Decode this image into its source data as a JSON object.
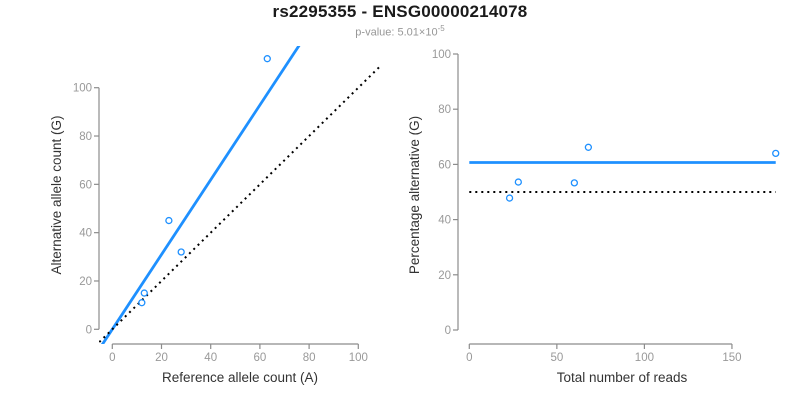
{
  "header": {
    "title": "rs2295355 - ENSG00000214078",
    "subtitle_prefix": "p-value: 5.01×10",
    "subtitle_exponent": "-5"
  },
  "colors": {
    "accent_blue": "#1E90FF",
    "dotted_black": "#000000",
    "axis_gray": "#8c8c8c",
    "tick_label_gray": "#999999",
    "axis_title_dark": "#333333"
  },
  "chart_data": [
    {
      "type": "scatter",
      "panel": "left",
      "xlabel": "Reference allele count (A)",
      "ylabel": "Alternative allele count (G)",
      "xlim": [
        0,
        100
      ],
      "ylim": [
        0,
        100
      ],
      "xticks": [
        0,
        20,
        40,
        60,
        80,
        100
      ],
      "yticks": [
        0,
        20,
        40,
        60,
        80,
        100
      ],
      "grid": false,
      "points": [
        [
          12,
          11
        ],
        [
          13,
          15
        ],
        [
          28,
          32
        ],
        [
          23,
          45
        ],
        [
          63,
          112
        ]
      ],
      "lines": [
        {
          "name": "fit-line",
          "slope": 1.547,
          "intercept": 0,
          "style": "solid",
          "color_key": "accent_blue",
          "width": 2.8
        },
        {
          "name": "identity-line",
          "slope": 1,
          "intercept": 0,
          "style": "dotted",
          "color_key": "dotted_black",
          "width": 2
        }
      ]
    },
    {
      "type": "scatter",
      "panel": "right",
      "xlabel": "Total number of reads",
      "ylabel": "Percentage alternative (G)",
      "xlim": [
        0,
        175
      ],
      "ylim": [
        0,
        100
      ],
      "xticks": [
        0,
        50,
        100,
        150
      ],
      "yticks": [
        0,
        20,
        40,
        60,
        80,
        100
      ],
      "grid": false,
      "points": [
        [
          23,
          47.8
        ],
        [
          28,
          53.6
        ],
        [
          60,
          53.3
        ],
        [
          68,
          66.2
        ],
        [
          175,
          64
        ]
      ],
      "lines": [
        {
          "name": "fit-line",
          "x1": 0,
          "y1": 60.7,
          "x2": 175,
          "y2": 60.7,
          "style": "solid",
          "color_key": "accent_blue",
          "width": 2.8
        },
        {
          "name": "null-line",
          "x1": 0,
          "y1": 50,
          "x2": 175,
          "y2": 50,
          "style": "dotted",
          "color_key": "dotted_black",
          "width": 2
        }
      ]
    }
  ]
}
